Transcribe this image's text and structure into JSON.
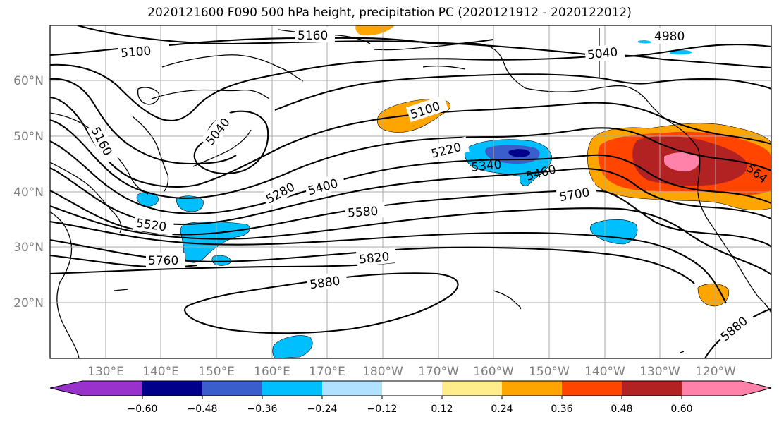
{
  "title": "2020121600 F090 500 hPa height, precipitation PC (2020121912 - 2020122012)",
  "map": {
    "lat_labels": [
      "60°N",
      "50°N",
      "40°N",
      "30°N",
      "20°N"
    ],
    "lon_labels": [
      "130°E",
      "140°E",
      "150°E",
      "160°E",
      "170°E",
      "180°W",
      "170°W",
      "160°W",
      "150°W",
      "140°W",
      "130°W",
      "120°W"
    ],
    "contour_labels": [
      "5160",
      "4980",
      "5100",
      "5040",
      "5100",
      "5040",
      "5160",
      "5220",
      "5340",
      "5460",
      "5280",
      "5400",
      "5580",
      "5700",
      "5520",
      "5760",
      "5820",
      "5880",
      "5880",
      "564"
    ]
  },
  "colorbar": {
    "colors": [
      "#9932cc",
      "#00008b",
      "#3a5fcd",
      "#00bfff",
      "#b0e2ff",
      "#ffffff",
      "#ffec8b",
      "#ffa500",
      "#ff4500",
      "#b22222",
      "#ff82ab"
    ],
    "tick_labels": [
      "−0.60",
      "−0.48",
      "−0.36",
      "−0.24",
      "−0.12",
      "0.12",
      "0.24",
      "0.36",
      "0.48",
      "0.60"
    ]
  }
}
